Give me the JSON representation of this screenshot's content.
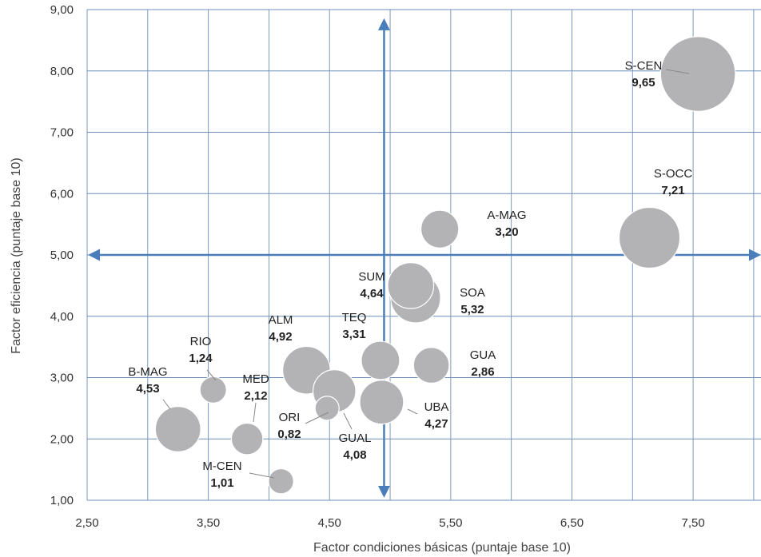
{
  "chart_data": {
    "type": "scatter",
    "title": "",
    "xlabel": "Factor condiciones básicas (puntaje base 10)",
    "ylabel": "Factor eficiencia (puntaje base 10)",
    "xlim": [
      2.5,
      8.06
    ],
    "ylim": [
      1.0,
      9.0
    ],
    "xticks": [
      "2,50",
      "3,50",
      "4,50",
      "5,50",
      "6,50",
      "7,50"
    ],
    "yticks": [
      "1,00",
      "2,00",
      "3,00",
      "4,00",
      "5,00",
      "6,00",
      "7,00",
      "8,00",
      "9,00"
    ],
    "grid": true,
    "reference_lines": {
      "x": 4.95,
      "y": 5.0,
      "color": "#4a7ebb"
    },
    "bubble_color": "#b3b3b6",
    "points": [
      {
        "label": "S-CEN",
        "value": "9,65",
        "x": 7.54,
        "y": 7.95,
        "size": 9.65
      },
      {
        "label": "S-OCC",
        "value": "7,21",
        "x": 7.14,
        "y": 5.28,
        "size": 7.21
      },
      {
        "label": "A-MAG",
        "value": "3,20",
        "x": 5.41,
        "y": 5.42,
        "size": 3.2
      },
      {
        "label": "SOA",
        "value": "5,32",
        "x": 5.21,
        "y": 4.3,
        "size": 5.32
      },
      {
        "label": "SUM",
        "value": "4,64",
        "x": 5.17,
        "y": 4.5,
        "size": 4.64
      },
      {
        "label": "TEQ",
        "value": "3,31",
        "x": 4.92,
        "y": 3.28,
        "size": 3.31
      },
      {
        "label": "GUA",
        "value": "2,86",
        "x": 5.34,
        "y": 3.2,
        "size": 2.86
      },
      {
        "label": "UBA",
        "value": "4,27",
        "x": 4.93,
        "y": 2.6,
        "size": 4.27
      },
      {
        "label": "ALM",
        "value": "4,92",
        "x": 4.31,
        "y": 3.12,
        "size": 4.92
      },
      {
        "label": "GUAL",
        "value": "4,08",
        "x": 4.54,
        "y": 2.78,
        "size": 4.08
      },
      {
        "label": "ORI",
        "value": "0,82",
        "x": 4.48,
        "y": 2.5,
        "size": 0.82
      },
      {
        "label": "MED",
        "value": "2,12",
        "x": 3.82,
        "y": 2.0,
        "size": 2.12
      },
      {
        "label": "RIO",
        "value": "1,24",
        "x": 3.54,
        "y": 2.8,
        "size": 1.24
      },
      {
        "label": "B-MAG",
        "value": "4,53",
        "x": 3.25,
        "y": 2.16,
        "size": 4.53
      },
      {
        "label": "M-CEN",
        "value": "1,01",
        "x": 4.1,
        "y": 1.31,
        "size": 1.01
      }
    ]
  }
}
